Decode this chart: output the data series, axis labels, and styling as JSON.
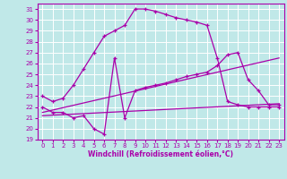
{
  "xlabel": "Windchill (Refroidissement éolien,°C)",
  "background_color": "#c0e8e8",
  "grid_color": "#ffffff",
  "line_color": "#aa00aa",
  "xlim": [
    -0.5,
    23.5
  ],
  "ylim": [
    19,
    31.5
  ],
  "yticks": [
    19,
    20,
    21,
    22,
    23,
    24,
    25,
    26,
    27,
    28,
    29,
    30,
    31
  ],
  "xticks": [
    0,
    1,
    2,
    3,
    4,
    5,
    6,
    7,
    8,
    9,
    10,
    11,
    12,
    13,
    14,
    15,
    16,
    17,
    18,
    19,
    20,
    21,
    22,
    23
  ],
  "series": [
    {
      "x": [
        0,
        1,
        2,
        3,
        4,
        5,
        6,
        7,
        8,
        9,
        10,
        11,
        12,
        13,
        14,
        15,
        16,
        17,
        18,
        19,
        20,
        21,
        22,
        23
      ],
      "y": [
        23.0,
        22.5,
        22.8,
        24.0,
        25.5,
        27.0,
        28.5,
        29.0,
        29.5,
        31.0,
        31.0,
        30.8,
        30.5,
        30.2,
        30.0,
        29.8,
        29.5,
        26.5,
        22.5,
        22.2,
        22.0,
        22.0,
        22.0,
        22.0
      ],
      "marker": true
    },
    {
      "x": [
        0,
        1,
        2,
        3,
        4,
        5,
        6,
        7,
        8,
        9,
        10,
        11,
        12,
        13,
        14,
        15,
        16,
        17,
        18,
        19,
        20,
        21,
        22,
        23
      ],
      "y": [
        22.0,
        21.5,
        21.5,
        21.0,
        21.2,
        20.0,
        19.5,
        26.5,
        21.0,
        23.5,
        23.8,
        24.0,
        24.2,
        24.5,
        24.8,
        25.0,
        25.2,
        25.8,
        26.8,
        27.0,
        24.5,
        23.5,
        22.2,
        22.2
      ],
      "marker": true
    },
    {
      "x": [
        0,
        23
      ],
      "y": [
        21.5,
        26.5
      ],
      "marker": false
    },
    {
      "x": [
        0,
        23
      ],
      "y": [
        21.2,
        22.3
      ],
      "marker": false
    }
  ]
}
